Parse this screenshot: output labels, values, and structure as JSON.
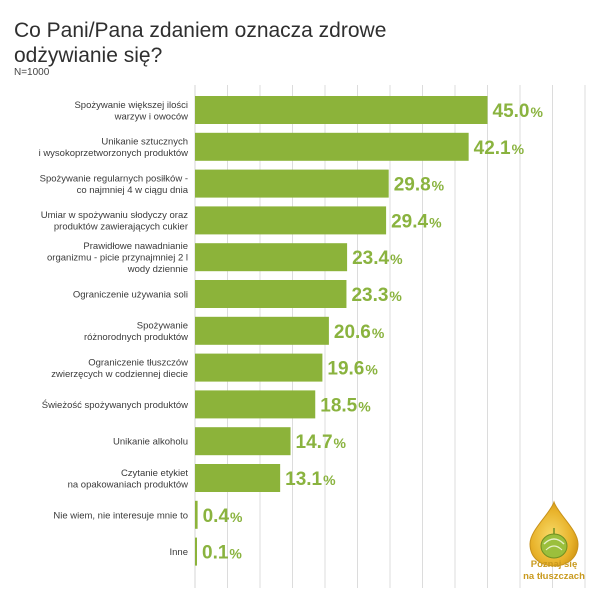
{
  "title": "Co Pani/Pana zdaniem oznacza zdrowe odżywianie się?",
  "subtitle": "N=1000",
  "logo": {
    "line1": "Poznaj się",
    "line2": "na tłuszczach",
    "icon": "golden-drop-with-olive-icon"
  },
  "colors": {
    "bar": "#8cb33a",
    "value_text": "#8ab33f",
    "gridline": "#d4d4d4",
    "logo_gold": "#e3b52c"
  },
  "chart_data": {
    "type": "bar",
    "orientation": "horizontal",
    "title": "Co Pani/Pana zdaniem oznacza zdrowe odżywianie się?",
    "subtitle": "N=1000",
    "categories": [
      [
        "Spożywanie większej ilości",
        "warzyw i owoców"
      ],
      [
        "Unikanie sztucznych",
        "i wysokoprzetworzonych produktów"
      ],
      [
        "Spożywanie regularnych posiłków -",
        "co najmniej 4 w ciągu dnia"
      ],
      [
        "Umiar w spożywaniu słodyczy oraz",
        "produktów zawierających cukier"
      ],
      [
        "Prawidłowe nawadnianie",
        "organizmu - picie przynajmniej 2 l",
        "wody dziennie"
      ],
      [
        "Ograniczenie używania soli"
      ],
      [
        "Spożywanie",
        "różnorodnych produktów"
      ],
      [
        "Ograniczenie tłuszczów",
        "zwierzęcych w codziennej diecie"
      ],
      [
        "Świeżość spożywanych produktów"
      ],
      [
        "Unikanie alkoholu"
      ],
      [
        "Czytanie etykiet",
        "na opakowaniach produktów"
      ],
      [
        "Nie wiem, nie interesuje mnie to"
      ],
      [
        "Inne"
      ]
    ],
    "values": [
      45.0,
      42.1,
      29.8,
      29.4,
      23.4,
      23.3,
      20.6,
      19.6,
      18.5,
      14.7,
      13.1,
      0.4,
      0.1
    ],
    "value_labels": [
      "45.0",
      "42.1",
      "29.8",
      "29.4",
      "23.4",
      "23.3",
      "20.6",
      "19.6",
      "18.5",
      "14.7",
      "13.1",
      "0.4",
      "0.1"
    ],
    "unit": "%",
    "xlim": [
      0,
      70
    ],
    "grid": true,
    "legend": "none"
  }
}
